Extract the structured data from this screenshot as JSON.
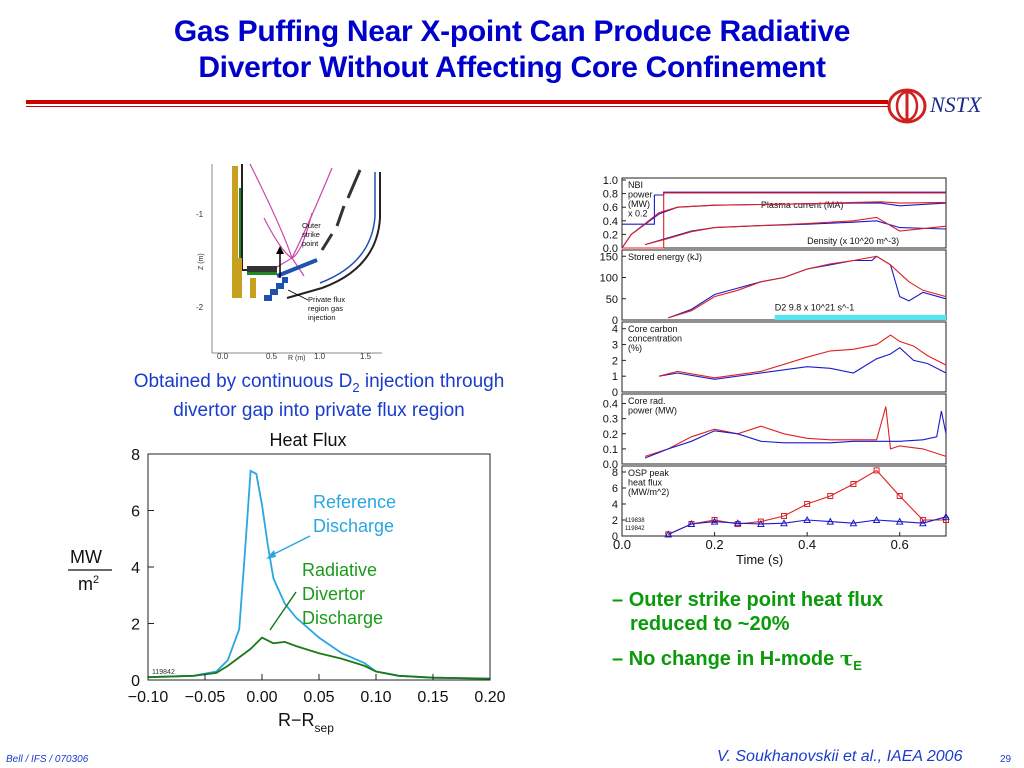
{
  "slide": {
    "title_line1": "Gas Puffing Near X-point Can Produce Radiative",
    "title_line2": "Divertor Without Affecting Core Confinement",
    "logo_text": "NSTX",
    "caption_line1_a": "Obtained by continuous D",
    "caption_line1_sub": "2",
    "caption_line1_b": " injection through",
    "caption_line2": "divertor gap into private flux region",
    "bullets": [
      {
        "dash": "–",
        "line1": "Outer strike point heat flux",
        "line2": "reduced to ~20%"
      },
      {
        "dash": "–",
        "text": "No change in H-mode ",
        "symbol": "τ",
        "symbol_sub": "E"
      }
    ],
    "footer_left": "Bell / IFS / 070306",
    "footer_right": "V. Soukhanovskii et al., IAEA 2006",
    "page_number": "29"
  },
  "geometry_figure": {
    "y_ticks": [
      "-1",
      "-2"
    ],
    "ylabel": "Z (m)",
    "x_ticks": [
      "0.0",
      "0.5",
      "1.0",
      "1.5"
    ],
    "xlabel": "R (m)",
    "label_strike": [
      "Outer",
      "strike",
      "point"
    ],
    "label_injection": [
      "Private flux",
      "region gas",
      "injection"
    ],
    "colors": {
      "separatrix": "#cc44aa",
      "wall": "#222222",
      "tiles": "#c8a020",
      "gas": "#2050b0"
    }
  },
  "chart_data": [
    {
      "type": "line",
      "title": "Heat Flux",
      "xlabel": "R−R",
      "xlabel_sub": "sep",
      "ylabel_num": "MW",
      "ylabel_den": "m",
      "ylabel_den_sup": "2",
      "shot_label": "119842",
      "xlim": [
        -0.1,
        0.2
      ],
      "ylim": [
        0,
        8
      ],
      "x_ticks": [
        "−0.10",
        "−0.05",
        "0.00",
        "0.05",
        "0.10",
        "0.15",
        "0.20"
      ],
      "x_tick_values": [
        -0.1,
        -0.05,
        0.0,
        0.05,
        0.1,
        0.15,
        0.2
      ],
      "y_ticks": [
        "0",
        "2",
        "4",
        "6",
        "8"
      ],
      "y_tick_values": [
        0,
        2,
        4,
        6,
        8
      ],
      "series": [
        {
          "name_lines": [
            "Reference",
            "Discharge"
          ],
          "color": "#2aa6e0",
          "x": [
            -0.1,
            -0.06,
            -0.04,
            -0.03,
            -0.02,
            -0.015,
            -0.01,
            -0.005,
            0.0,
            0.005,
            0.01,
            0.02,
            0.03,
            0.05,
            0.07,
            0.09,
            0.1,
            0.12,
            0.15,
            0.2
          ],
          "y": [
            0.1,
            0.15,
            0.3,
            0.7,
            1.8,
            4.5,
            7.4,
            7.3,
            6.2,
            4.8,
            3.6,
            2.7,
            2.2,
            1.5,
            0.95,
            0.6,
            0.3,
            0.15,
            0.08,
            0.05
          ]
        },
        {
          "name_lines": [
            "Radiative",
            "Divertor",
            "Discharge"
          ],
          "color": "#1a7a1a",
          "x": [
            -0.1,
            -0.06,
            -0.04,
            -0.03,
            -0.02,
            -0.01,
            0.0,
            0.01,
            0.02,
            0.03,
            0.05,
            0.07,
            0.09,
            0.1,
            0.12,
            0.15,
            0.2
          ],
          "y": [
            0.1,
            0.15,
            0.25,
            0.5,
            0.8,
            1.1,
            1.5,
            1.3,
            1.35,
            1.2,
            0.95,
            0.75,
            0.5,
            0.3,
            0.15,
            0.08,
            0.05
          ]
        }
      ]
    },
    {
      "type": "line",
      "panel": "timetraces",
      "xlabel": "Time (s)",
      "xlim": [
        0.0,
        0.7
      ],
      "x_ticks": [
        "0.0",
        "0.2",
        "0.4",
        "0.6"
      ],
      "x_tick_values": [
        0.0,
        0.2,
        0.4,
        0.6
      ],
      "series_colors": {
        "reference": "#1a1acc",
        "radiative": "#e02020"
      },
      "panels": [
        {
          "labels": [
            "NBI",
            "power",
            "(MW)",
            "x 0.2"
          ],
          "ylim": [
            0,
            1.0
          ],
          "y_ticks": [
            "1.0",
            "0.8",
            "0.6",
            "0.4",
            "0.2",
            "0.0"
          ],
          "y_tick_values": [
            1.0,
            0.8,
            0.6,
            0.4,
            0.2,
            0.0
          ],
          "inner_labels": [
            {
              "text": "Plasma current (MA)",
              "x": 0.3,
              "y": 0.59
            },
            {
              "text": "Density (x 10^20 m^-3)",
              "x": 0.4,
              "y": 0.06
            }
          ],
          "curves": [
            {
              "color": "#1a1acc",
              "x": [
                0.0,
                0.07,
                0.07,
                0.09,
                0.09,
                0.7
              ],
              "y": [
                0.35,
                0.35,
                0.78,
                0.78,
                0.82,
                0.82
              ]
            },
            {
              "color": "#e02020",
              "x": [
                0.0,
                0.09,
                0.09,
                0.7
              ],
              "y": [
                0.0,
                0.0,
                0.81,
                0.81
              ]
            },
            {
              "color": "#1a1acc",
              "x": [
                0.0,
                0.02,
                0.05,
                0.08,
                0.12,
                0.2,
                0.3,
                0.4,
                0.5,
                0.56,
                0.6,
                0.7
              ],
              "y": [
                0.0,
                0.2,
                0.35,
                0.5,
                0.6,
                0.63,
                0.64,
                0.65,
                0.66,
                0.66,
                0.62,
                0.66
              ]
            },
            {
              "color": "#e02020",
              "x": [
                0.0,
                0.02,
                0.05,
                0.08,
                0.12,
                0.2,
                0.3,
                0.4,
                0.5,
                0.56,
                0.6,
                0.7
              ],
              "y": [
                0.0,
                0.2,
                0.36,
                0.52,
                0.6,
                0.63,
                0.64,
                0.65,
                0.67,
                0.68,
                0.66,
                0.67
              ]
            },
            {
              "color": "#1a1acc",
              "x": [
                0.05,
                0.1,
                0.15,
                0.2,
                0.3,
                0.4,
                0.5,
                0.55,
                0.6,
                0.7
              ],
              "y": [
                0.05,
                0.15,
                0.25,
                0.3,
                0.33,
                0.35,
                0.38,
                0.4,
                0.3,
                0.28
              ]
            },
            {
              "color": "#e02020",
              "x": [
                0.05,
                0.1,
                0.15,
                0.2,
                0.3,
                0.4,
                0.5,
                0.55,
                0.6,
                0.7
              ],
              "y": [
                0.05,
                0.14,
                0.24,
                0.3,
                0.33,
                0.36,
                0.4,
                0.45,
                0.25,
                0.32
              ]
            }
          ]
        },
        {
          "labels": [
            "Stored energy (kJ)"
          ],
          "ylim": [
            0,
            160
          ],
          "y_ticks": [
            "150",
            "100",
            "50",
            "0"
          ],
          "y_tick_values": [
            150,
            100,
            50,
            0
          ],
          "inner_labels": [
            {
              "text": "D2 9.8 x 10^21 s^-1",
              "x": 0.33,
              "y": 22
            }
          ],
          "band": {
            "x0": 0.33,
            "x1": 0.7,
            "y0": 0,
            "y1": 12,
            "color": "#55e5ee"
          },
          "curves": [
            {
              "color": "#1a1acc",
              "x": [
                0.1,
                0.15,
                0.2,
                0.25,
                0.3,
                0.35,
                0.4,
                0.45,
                0.5,
                0.54,
                0.55,
                0.58,
                0.6,
                0.62,
                0.65,
                0.7
              ],
              "y": [
                5,
                25,
                60,
                75,
                90,
                100,
                120,
                130,
                140,
                140,
                150,
                130,
                55,
                45,
                65,
                50
              ]
            },
            {
              "color": "#e02020",
              "x": [
                0.1,
                0.15,
                0.2,
                0.25,
                0.3,
                0.35,
                0.4,
                0.45,
                0.5,
                0.55,
                0.58,
                0.6,
                0.62,
                0.65,
                0.7
              ],
              "y": [
                5,
                22,
                55,
                70,
                90,
                100,
                120,
                132,
                140,
                150,
                130,
                110,
                90,
                70,
                55
              ]
            }
          ]
        },
        {
          "labels": [
            "Core carbon",
            "concentration",
            "(%)"
          ],
          "ylim": [
            0,
            4.3
          ],
          "y_ticks": [
            "4",
            "3",
            "2",
            "1",
            "0"
          ],
          "y_tick_values": [
            4,
            3,
            2,
            1,
            0
          ],
          "curves": [
            {
              "color": "#1a1acc",
              "x": [
                0.08,
                0.12,
                0.2,
                0.3,
                0.4,
                0.45,
                0.5,
                0.55,
                0.58,
                0.6,
                0.63,
                0.66,
                0.7
              ],
              "y": [
                1.0,
                1.2,
                0.8,
                1.2,
                1.6,
                1.5,
                1.2,
                2.1,
                2.4,
                2.8,
                2.0,
                1.8,
                1.2
              ]
            },
            {
              "color": "#e02020",
              "x": [
                0.08,
                0.12,
                0.2,
                0.3,
                0.4,
                0.45,
                0.5,
                0.55,
                0.58,
                0.6,
                0.63,
                0.66,
                0.7
              ],
              "y": [
                1.0,
                1.3,
                0.9,
                1.3,
                2.2,
                2.6,
                2.7,
                3.0,
                3.6,
                3.2,
                2.9,
                2.3,
                1.7
              ]
            }
          ]
        },
        {
          "labels": [
            "Core rad.",
            "power (MW)"
          ],
          "ylim": [
            0,
            0.45
          ],
          "y_ticks": [
            "0.4",
            "0.3",
            "0.2",
            "0.1",
            "0.0"
          ],
          "y_tick_values": [
            0.4,
            0.3,
            0.2,
            0.1,
            0.0
          ],
          "curves": [
            {
              "color": "#e02020",
              "x": [
                0.05,
                0.1,
                0.15,
                0.2,
                0.25,
                0.3,
                0.35,
                0.4,
                0.45,
                0.5,
                0.55,
                0.57,
                0.58,
                0.6,
                0.65,
                0.7
              ],
              "y": [
                0.05,
                0.1,
                0.18,
                0.23,
                0.2,
                0.25,
                0.2,
                0.17,
                0.16,
                0.16,
                0.16,
                0.38,
                0.1,
                0.12,
                0.1,
                0.05
              ]
            },
            {
              "color": "#1a1acc",
              "x": [
                0.05,
                0.1,
                0.15,
                0.2,
                0.25,
                0.3,
                0.35,
                0.4,
                0.45,
                0.5,
                0.55,
                0.6,
                0.65,
                0.68,
                0.69,
                0.7
              ],
              "y": [
                0.04,
                0.1,
                0.15,
                0.22,
                0.2,
                0.15,
                0.14,
                0.14,
                0.14,
                0.15,
                0.15,
                0.15,
                0.16,
                0.18,
                0.35,
                0.2
              ]
            }
          ]
        },
        {
          "labels": [
            "OSP peak",
            "heat flux",
            "(MW/m^2)"
          ],
          "ylim": [
            0,
            8.5
          ],
          "y_ticks": [
            "8",
            "6",
            "4",
            "2",
            "0"
          ],
          "y_tick_values": [
            8,
            6,
            4,
            2,
            0
          ],
          "shots": [
            "119838",
            "119842"
          ],
          "curves": [
            {
              "color": "#e02020",
              "marker": "square",
              "x": [
                0.1,
                0.15,
                0.2,
                0.25,
                0.3,
                0.35,
                0.4,
                0.45,
                0.5,
                0.55,
                0.6,
                0.65,
                0.7
              ],
              "y": [
                0.2,
                1.5,
                2.0,
                1.5,
                1.8,
                2.5,
                4.0,
                5.0,
                6.5,
                8.2,
                5.0,
                2.0,
                2.0
              ]
            },
            {
              "color": "#1a1acc",
              "marker": "triangle",
              "x": [
                0.1,
                0.15,
                0.2,
                0.25,
                0.3,
                0.35,
                0.4,
                0.45,
                0.5,
                0.55,
                0.6,
                0.65,
                0.7
              ],
              "y": [
                0.2,
                1.5,
                1.8,
                1.6,
                1.5,
                1.6,
                2.0,
                1.8,
                1.6,
                2.0,
                1.8,
                1.6,
                2.4
              ]
            }
          ]
        }
      ]
    }
  ]
}
